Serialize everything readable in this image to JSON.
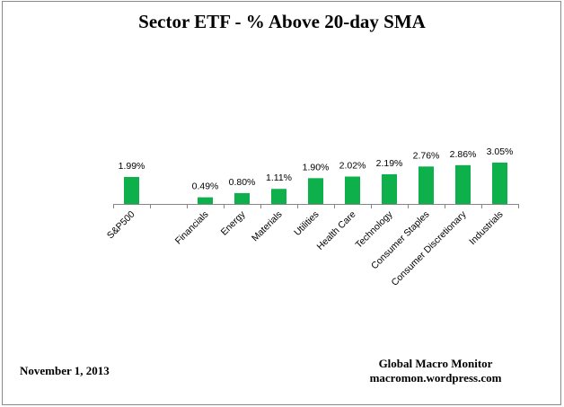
{
  "chart_data": {
    "type": "bar",
    "title": "Sector ETF - % Above 20-day SMA",
    "categories": [
      "S&P500",
      "",
      "Financials",
      "Energy",
      "Materials",
      "Utilities",
      "Health Care",
      "Technology",
      "Consumer Staples",
      "Consumer Discretionary",
      "Industrials"
    ],
    "values": [
      1.99,
      null,
      0.49,
      0.8,
      1.11,
      1.9,
      2.02,
      2.19,
      2.76,
      2.86,
      3.05
    ],
    "data_labels": [
      "1.99%",
      "",
      "0.49%",
      "0.80%",
      "1.11%",
      "1.90%",
      "2.02%",
      "2.19%",
      "2.76%",
      "2.86%",
      "3.05%"
    ],
    "xlabel": "",
    "ylabel": "",
    "ylim": [
      0,
      3.5
    ],
    "grid": false,
    "bar_color": "#0DB04B"
  },
  "footer": {
    "date": "November 1, 2013",
    "source_name": "Global Macro Monitor",
    "source_url": "macromon.wordpress.com"
  }
}
